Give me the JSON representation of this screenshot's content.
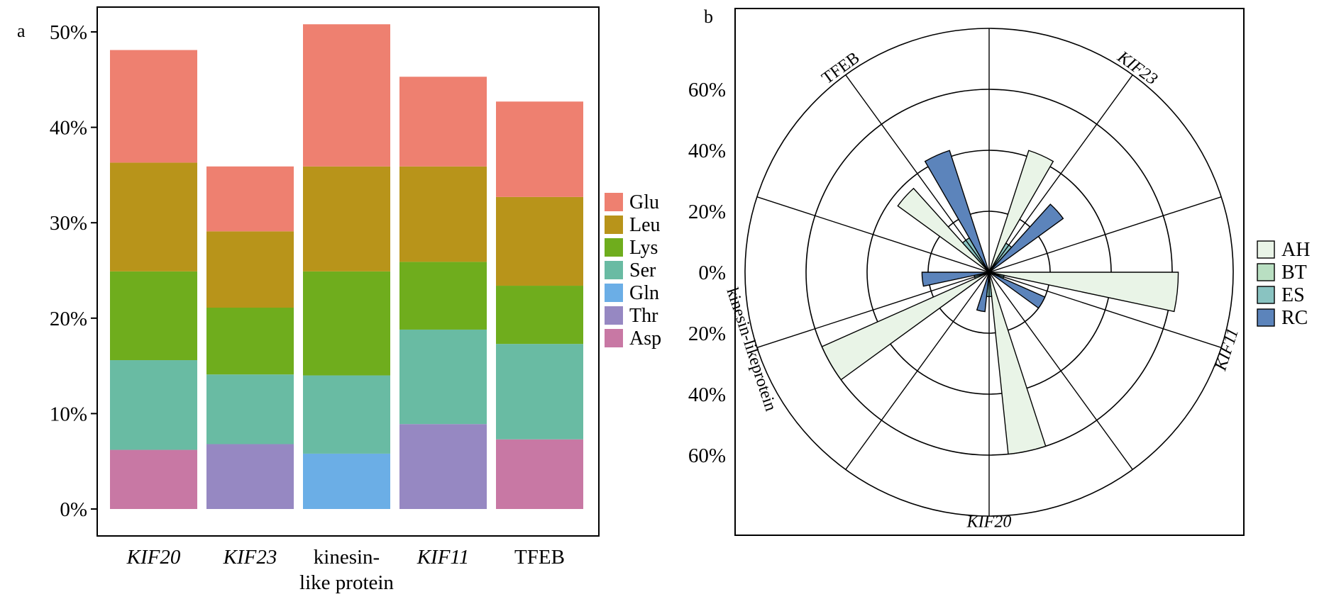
{
  "chart_data": [
    {
      "panel": "a",
      "type": "bar",
      "stacked": true,
      "categories": [
        {
          "line1": "KIF20",
          "line2": "",
          "italic": true
        },
        {
          "line1": "KIF23",
          "line2": "",
          "italic": true
        },
        {
          "line1": "kinesin-",
          "line2": "like protein",
          "italic": false
        },
        {
          "line1": "KIF11",
          "line2": "",
          "italic": true
        },
        {
          "line1": "TFEB",
          "line2": "",
          "italic": false
        }
      ],
      "ylim": [
        0,
        50
      ],
      "yticks": [
        0,
        10,
        20,
        30,
        40,
        50
      ],
      "ytick_labels": [
        "0%",
        "10%",
        "20%",
        "30%",
        "40%",
        "50%"
      ],
      "series": [
        {
          "name": "Glu",
          "color": "#ee8070",
          "values": [
            11.8,
            6.8,
            14.9,
            9.4,
            10.0
          ]
        },
        {
          "name": "Leu",
          "color": "#b8941a",
          "values": [
            11.4,
            8.0,
            11.0,
            10.0,
            9.3
          ]
        },
        {
          "name": "Lys",
          "color": "#6fad1d",
          "values": [
            9.3,
            7.0,
            10.9,
            7.1,
            6.1
          ]
        },
        {
          "name": "Ser",
          "color": "#69bba3",
          "values": [
            9.4,
            7.3,
            8.2,
            9.9,
            10.0
          ]
        },
        {
          "name": "Gln",
          "color": "#6baee6",
          "values": [
            0,
            0,
            5.8,
            0,
            0
          ]
        },
        {
          "name": "Thr",
          "color": "#9688c2",
          "values": [
            0,
            6.8,
            0,
            8.9,
            0
          ]
        },
        {
          "name": "Asp",
          "color": "#c878a4",
          "values": [
            6.2,
            0,
            0,
            0,
            7.3
          ]
        }
      ],
      "legend_order": [
        "Glu",
        "Leu",
        "Lys",
        "Ser",
        "Gln",
        "Thr",
        "Asp"
      ],
      "legend_position": "right",
      "grid": false
    },
    {
      "panel": "b",
      "type": "polar-bar",
      "rlim": [
        0,
        80
      ],
      "rticks": [
        20,
        40,
        60
      ],
      "ytick_labels": [
        "60%",
        "40%",
        "20%",
        "0%",
        "20%",
        "40%",
        "60%"
      ],
      "categories": [
        {
          "name": "KIF23",
          "italic": true
        },
        {
          "name": "KIF11",
          "italic": true
        },
        {
          "name": "KIF20",
          "italic": true
        },
        {
          "name": "kinesin-likeprotein",
          "italic": false
        },
        {
          "name": "TFEB",
          "italic": false
        }
      ],
      "series": [
        {
          "name": "AH",
          "color": "#e9f4e7",
          "values": [
            42,
            62,
            60,
            60,
            37
          ]
        },
        {
          "name": "BT",
          "color": "#b9dfc2",
          "values": [
            0,
            0,
            0,
            0,
            0
          ]
        },
        {
          "name": "ES",
          "color": "#89c3c1",
          "values": [
            11,
            5,
            8,
            5,
            13
          ]
        },
        {
          "name": "RC",
          "color": "#5c84bb",
          "values": [
            30,
            20,
            13,
            22,
            42
          ]
        }
      ],
      "legend_position": "right",
      "grid": true
    }
  ],
  "panel_labels": {
    "a": "a",
    "b": "b"
  }
}
